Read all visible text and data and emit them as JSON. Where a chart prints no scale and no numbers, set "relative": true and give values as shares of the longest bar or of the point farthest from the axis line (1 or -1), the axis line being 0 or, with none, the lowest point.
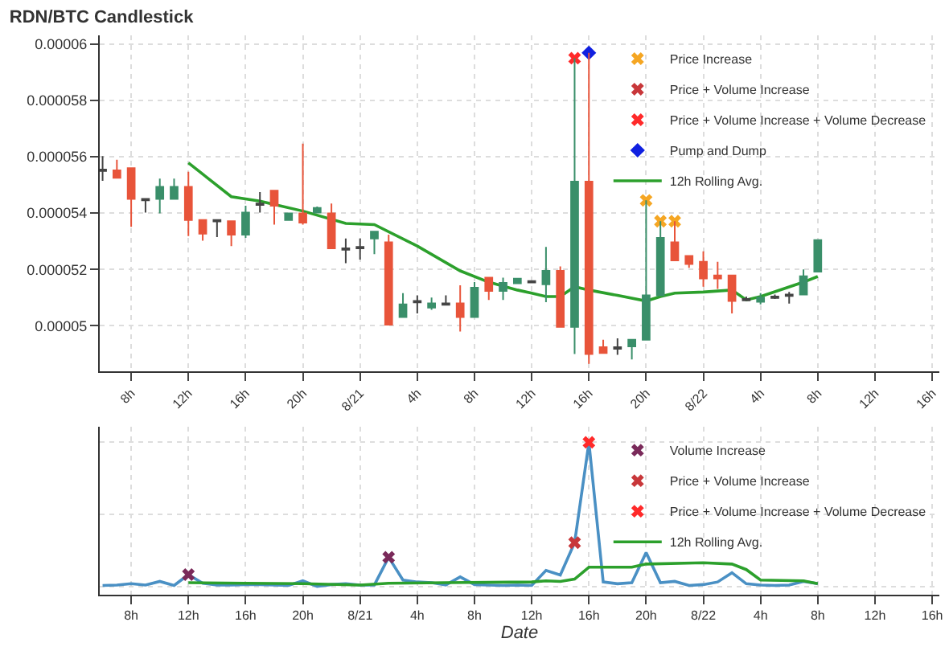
{
  "chart_data": [
    {
      "type": "candlestick",
      "title": "RDN/BTC Candlestick",
      "x": [
        "--08-20T06:00",
        "--08-20T07:00",
        "--08-20T08:00",
        "--08-20T09:00",
        "--08-20T10:00",
        "--08-20T11:00",
        "--08-20T12:00",
        "--08-20T13:00",
        "--08-20T14:00",
        "--08-20T15:00",
        "--08-20T16:00",
        "--08-20T17:00",
        "--08-20T18:00",
        "--08-20T19:00",
        "--08-20T20:00",
        "--08-20T21:00",
        "--08-20T22:00",
        "--08-20T23:00",
        "--08-21T00:00",
        "--08-21T01:00",
        "--08-21T02:00",
        "--08-21T03:00",
        "--08-21T04:00",
        "--08-21T05:00",
        "--08-21T06:00",
        "--08-21T07:00",
        "--08-21T08:00",
        "--08-21T09:00",
        "--08-21T10:00",
        "--08-21T11:00",
        "--08-21T12:00",
        "--08-21T13:00",
        "--08-21T14:00",
        "--08-21T15:00",
        "--08-21T16:00",
        "--08-21T17:00",
        "--08-21T18:00",
        "--08-21T19:00",
        "--08-21T20:00",
        "--08-21T21:00",
        "--08-21T22:00",
        "--08-21T23:00",
        "--08-22T00:00",
        "--08-22T01:00",
        "--08-22T02:00",
        "--08-22T03:00",
        "--08-22T04:00",
        "--08-22T05:00",
        "--08-22T06:00",
        "--08-22T07:00",
        "--08-22T08:00"
      ],
      "ohlc": [
        [
          5.554e-05,
          5.602e-05,
          5.514e-05,
          5.549e-05
        ],
        [
          5.551e-05,
          5.589e-05,
          5.525e-05,
          5.525e-05
        ],
        [
          5.559e-05,
          5.559e-05,
          5.351e-05,
          5.45e-05
        ],
        [
          5.45e-05,
          5.45e-05,
          5.402e-05,
          5.445e-05
        ],
        [
          5.45e-05,
          5.522e-05,
          5.399e-05,
          5.493e-05
        ],
        [
          5.45e-05,
          5.522e-05,
          5.45e-05,
          5.493e-05
        ],
        [
          5.493e-05,
          5.546e-05,
          5.318e-05,
          5.375e-05
        ],
        [
          5.375e-05,
          5.375e-05,
          5.302e-05,
          5.327e-05
        ],
        [
          5.375e-05,
          5.375e-05,
          5.315e-05,
          5.37e-05
        ],
        [
          5.371e-05,
          5.371e-05,
          5.283e-05,
          5.323e-05
        ],
        [
          5.323e-05,
          5.426e-05,
          5.312e-05,
          5.402e-05
        ],
        [
          5.434e-05,
          5.474e-05,
          5.402e-05,
          5.429e-05
        ],
        [
          5.479e-05,
          5.479e-05,
          5.359e-05,
          5.426e-05
        ],
        [
          5.375e-05,
          5.399e-05,
          5.375e-05,
          5.399e-05
        ],
        [
          5.399e-05,
          5.646e-05,
          5.359e-05,
          5.366e-05
        ],
        [
          5.402e-05,
          5.423e-05,
          5.402e-05,
          5.418e-05
        ],
        [
          5.399e-05,
          5.434e-05,
          5.275e-05,
          5.275e-05
        ],
        [
          5.275e-05,
          5.31e-05,
          5.222e-05,
          5.27e-05
        ],
        [
          5.28e-05,
          5.31e-05,
          5.235e-05,
          5.275e-05
        ],
        [
          5.31e-05,
          5.334e-05,
          5.254e-05,
          5.334e-05
        ],
        [
          5.296e-05,
          5.323e-05,
          5.004e-05,
          5.004e-05
        ],
        [
          5.031e-05,
          5.116e-05,
          5.031e-05,
          5.076e-05
        ],
        [
          5.088e-05,
          5.108e-05,
          5.044e-05,
          5.083e-05
        ],
        [
          5.065e-05,
          5.1e-05,
          5.057e-05,
          5.08e-05
        ],
        [
          5.08e-05,
          5.108e-05,
          5.073e-05,
          5.075e-05
        ],
        [
          5.08e-05,
          5.144e-05,
          4.98e-05,
          5.031e-05
        ],
        [
          5.031e-05,
          5.155e-05,
          5.031e-05,
          5.135e-05
        ],
        [
          5.171e-05,
          5.171e-05,
          5.092e-05,
          5.124e-05
        ],
        [
          5.124e-05,
          5.171e-05,
          5.092e-05,
          5.152e-05
        ],
        [
          5.151e-05,
          5.167e-05,
          5.151e-05,
          5.167e-05
        ],
        [
          5.159e-05,
          5.159e-05,
          5.154e-05,
          5.154e-05
        ],
        [
          5.147e-05,
          5.28e-05,
          5.084e-05,
          5.195e-05
        ],
        [
          5.195e-05,
          5.211e-05,
          4.996e-05,
          4.996e-05
        ],
        [
          4.996e-05,
          5.949e-05,
          4.9e-05,
          5.511e-05
        ],
        [
          5.511e-05,
          5.968e-05,
          4.865e-05,
          4.9e-05
        ],
        [
          4.924e-05,
          4.951e-05,
          4.904e-05,
          4.904e-05
        ],
        [
          4.924e-05,
          4.956e-05,
          4.897e-05,
          4.919e-05
        ],
        [
          4.927e-05,
          4.951e-05,
          4.881e-05,
          4.951e-05
        ],
        [
          4.951e-05,
          5.445e-05,
          4.951e-05,
          5.108e-05
        ],
        [
          5.108e-05,
          5.371e-05,
          5.108e-05,
          5.312e-05
        ],
        [
          5.296e-05,
          5.371e-05,
          5.232e-05,
          5.232e-05
        ],
        [
          5.248e-05,
          5.248e-05,
          5.206e-05,
          5.219e-05
        ],
        [
          5.227e-05,
          5.264e-05,
          5.139e-05,
          5.168e-05
        ],
        [
          5.179e-05,
          5.227e-05,
          5.131e-05,
          5.168e-05
        ],
        [
          5.179e-05,
          5.179e-05,
          5.044e-05,
          5.088e-05
        ],
        [
          5.095e-05,
          5.104e-05,
          5.088e-05,
          5.09e-05
        ],
        [
          5.085e-05,
          5.116e-05,
          5.076e-05,
          5.1e-05
        ],
        [
          5.104e-05,
          5.111e-05,
          5.095e-05,
          5.099e-05
        ],
        [
          5.111e-05,
          5.12e-05,
          5.079e-05,
          5.106e-05
        ],
        [
          5.111e-05,
          5.2e-05,
          5.111e-05,
          5.176e-05
        ],
        [
          5.192e-05,
          5.304e-05,
          5.192e-05,
          5.304e-05
        ]
      ],
      "colors": [
        "#444444",
        "#e8543a",
        "#e8543a",
        "#444444",
        "#3a8f6a",
        "#3a8f6a",
        "#e8543a",
        "#e8543a",
        "#444444",
        "#e8543a",
        "#3a8f6a",
        "#444444",
        "#e8543a",
        "#3a8f6a",
        "#e8543a",
        "#3a8f6a",
        "#e8543a",
        "#444444",
        "#444444",
        "#3a8f6a",
        "#e8543a",
        "#3a8f6a",
        "#444444",
        "#3a8f6a",
        "#444444",
        "#e8543a",
        "#3a8f6a",
        "#e8543a",
        "#3a8f6a",
        "#3a8f6a",
        "#444444",
        "#3a8f6a",
        "#e8543a",
        "#3a8f6a",
        "#e8543a",
        "#e8543a",
        "#444444",
        "#3a8f6a",
        "#3a8f6a",
        "#3a8f6a",
        "#e8543a",
        "#e8543a",
        "#e8543a",
        "#e8543a",
        "#e8543a",
        "#444444",
        "#3a8f6a",
        "#444444",
        "#444444",
        "#3a8f6a",
        "#3a8f6a"
      ],
      "series": [
        {
          "name": "Price Increase",
          "type": "scatter",
          "marker": "cross",
          "color": "#f5a623",
          "x": [
            "--08-21T20:00",
            "--08-21T21:00",
            "--08-21T22:00"
          ],
          "values": [
            5.445e-05,
            5.371e-05,
            5.371e-05
          ]
        },
        {
          "name": "Price + Volume Increase",
          "type": "scatter",
          "marker": "cross",
          "color": "#c8373a",
          "values": [
            null,
            null,
            null,
            null,
            null,
            null,
            null,
            null,
            null,
            null,
            null,
            null,
            null,
            null,
            null,
            null,
            null,
            null,
            null,
            null,
            null,
            null,
            null,
            null,
            null,
            null,
            null,
            null,
            null,
            null,
            null,
            null,
            null,
            null,
            null,
            null,
            null,
            null,
            null,
            null,
            null,
            null,
            null,
            null,
            null,
            null,
            null,
            null,
            null,
            null,
            null
          ]
        },
        {
          "name": "Price + Volume Increase + Volume Decrease",
          "type": "scatter",
          "marker": "cross",
          "color": "#ff2a2a",
          "x": [
            "--08-21T15:00"
          ],
          "values": [
            5.949e-05
          ]
        },
        {
          "name": "Pump and Dump",
          "type": "scatter",
          "marker": "diamond",
          "color": "#1020e0",
          "x": [
            "--08-21T16:00"
          ],
          "values": [
            5.968e-05
          ]
        },
        {
          "name": "12h Rolling Avg.",
          "type": "line",
          "marker": "none",
          "color": "#2ca02c",
          "x": [
            "--08-20T12:00",
            "--08-20T15:00",
            "--08-20T17:00",
            "--08-20T20:00",
            "--08-20T23:00",
            "--08-21T01:00",
            "--08-21T04:00",
            "--08-21T07:00",
            "--08-21T09:00",
            "--08-21T11:00",
            "--08-21T12:00",
            "--08-21T13:00",
            "--08-21T14:00",
            "--08-21T15:00",
            "--08-21T16:00",
            "--08-21T18:00",
            "--08-21T20:00",
            "--08-21T21:00",
            "--08-21T22:00",
            "--08-22T00:00",
            "--08-22T02:00",
            "--08-22T03:00",
            "--08-22T04:00",
            "--08-22T07:00",
            "--08-22T08:00"
          ],
          "values": [
            5.578e-05,
            5.458e-05,
            5.442e-05,
            5.407e-05,
            5.363e-05,
            5.359e-05,
            5.283e-05,
            5.195e-05,
            5.155e-05,
            5.127e-05,
            5.116e-05,
            5.104e-05,
            5.104e-05,
            5.139e-05,
            5.127e-05,
            5.108e-05,
            5.088e-05,
            5.104e-05,
            5.116e-05,
            5.12e-05,
            5.127e-05,
            5.092e-05,
            5.104e-05,
            5.155e-05,
            5.175e-05
          ]
        }
      ],
      "xlim": [
        "--08-20T05:48",
        "--08-22T16:30"
      ],
      "xticks": [
        {
          "value": "--08-20T08:00",
          "label": "8h"
        },
        {
          "value": "--08-20T12:00",
          "label": "12h"
        },
        {
          "value": "--08-20T16:00",
          "label": "16h"
        },
        {
          "value": "--08-20T20:00",
          "label": "20h"
        },
        {
          "value": "--08-21T00:00",
          "label": "8/21"
        },
        {
          "value": "--08-21T04:00",
          "label": "4h"
        },
        {
          "value": "--08-21T08:00",
          "label": "8h"
        },
        {
          "value": "--08-21T12:00",
          "label": "12h"
        },
        {
          "value": "--08-21T16:00",
          "label": "16h"
        },
        {
          "value": "--08-21T20:00",
          "label": "20h"
        },
        {
          "value": "--08-22T00:00",
          "label": "8/22"
        },
        {
          "value": "--08-22T04:00",
          "label": "4h"
        },
        {
          "value": "--08-22T08:00",
          "label": "8h"
        },
        {
          "value": "--08-22T12:00",
          "label": "12h"
        },
        {
          "value": "--08-22T16:00",
          "label": "16h"
        }
      ],
      "ylim": [
        4.84e-05,
        6.03e-05
      ],
      "yticks": [
        {
          "value": 5e-05,
          "label": "0.00005"
        },
        {
          "value": 5.2e-05,
          "label": "0.000052"
        },
        {
          "value": 5.4e-05,
          "label": "0.000054"
        },
        {
          "value": 5.6e-05,
          "label": "0.000056"
        },
        {
          "value": 5.8e-05,
          "label": "0.000058"
        },
        {
          "value": 6e-05,
          "label": "0.00006"
        }
      ],
      "grid": true,
      "legend": "top right"
    },
    {
      "type": "line",
      "relative": true,
      "xlabel": "Date",
      "x": [
        "--08-20T06:00",
        "--08-20T07:00",
        "--08-20T08:00",
        "--08-20T09:00",
        "--08-20T10:00",
        "--08-20T11:00",
        "--08-20T12:00",
        "--08-20T13:00",
        "--08-20T14:00",
        "--08-20T15:00",
        "--08-20T16:00",
        "--08-20T17:00",
        "--08-20T18:00",
        "--08-20T19:00",
        "--08-20T20:00",
        "--08-20T21:00",
        "--08-20T22:00",
        "--08-20T23:00",
        "--08-21T00:00",
        "--08-21T01:00",
        "--08-21T02:00",
        "--08-21T03:00",
        "--08-21T04:00",
        "--08-21T05:00",
        "--08-21T06:00",
        "--08-21T07:00",
        "--08-21T08:00",
        "--08-21T09:00",
        "--08-21T10:00",
        "--08-21T11:00",
        "--08-21T12:00",
        "--08-21T13:00",
        "--08-21T14:00",
        "--08-21T15:00",
        "--08-21T16:00",
        "--08-21T17:00",
        "--08-21T18:00",
        "--08-21T19:00",
        "--08-21T20:00",
        "--08-21T21:00",
        "--08-21T22:00",
        "--08-21T23:00",
        "--08-22T00:00",
        "--08-22T01:00",
        "--08-22T02:00",
        "--08-22T03:00",
        "--08-22T04:00",
        "--08-22T05:00",
        "--08-22T06:00",
        "--08-22T07:00",
        "--08-22T08:00"
      ],
      "series": [
        {
          "color": "#4a90c4",
          "values": [
            0.01,
            0.013,
            0.022,
            0.013,
            0.038,
            0.01,
            0.085,
            0.025,
            0.013,
            0.013,
            0.016,
            0.016,
            0.013,
            0.01,
            0.042,
            0.004,
            0.016,
            0.022,
            0.013,
            0.013,
            0.205,
            0.047,
            0.034,
            0.029,
            0.013,
            0.069,
            0.016,
            0.013,
            0.01,
            0.013,
            0.01,
            0.114,
            0.082,
            0.306,
            1,
            0.034,
            0.022,
            0.029,
            0.237,
            0.029,
            0.038,
            0.01,
            0.016,
            0.034,
            0.098,
            0.022,
            0.013,
            0.01,
            0.013,
            0.038,
            0.022
          ]
        },
        {
          "name": "Volume Increase",
          "type": "scatter",
          "marker": "cross",
          "color": "#7a2a5a",
          "x": [
            "--08-20T12:00",
            "--08-21T02:00"
          ],
          "values": [
            0.085,
            0.205
          ]
        },
        {
          "name": "Price + Volume Increase",
          "type": "scatter",
          "marker": "cross",
          "color": "#c8373a",
          "x": [
            "--08-21T15:00"
          ],
          "values": [
            0.306
          ]
        },
        {
          "name": "Price + Volume Increase + Volume Decrease",
          "type": "scatter",
          "marker": "cross",
          "color": "#ff2a2a",
          "x": [
            "--08-21T16:00"
          ],
          "values": [
            1
          ]
        },
        {
          "name": "12h Rolling Avg.",
          "type": "line",
          "marker": "none",
          "color": "#2ca02c",
          "x": [
            "--08-20T12:00",
            "--08-20T16:00",
            "--08-20T20:00",
            "--08-21T00:00",
            "--08-21T02:00",
            "--08-21T06:00",
            "--08-21T12:00",
            "--08-21T13:00",
            "--08-21T14:00",
            "--08-21T15:00",
            "--08-21T16:00",
            "--08-21T19:00",
            "--08-21T20:00",
            "--08-22T00:00",
            "--08-22T02:00",
            "--08-22T03:00",
            "--08-22T04:00",
            "--08-22T07:00",
            "--08-22T08:00"
          ],
          "values": [
            0.029,
            0.025,
            0.022,
            0.013,
            0.025,
            0.029,
            0.034,
            0.042,
            0.038,
            0.054,
            0.136,
            0.136,
            0.158,
            0.167,
            0.158,
            0.12,
            0.047,
            0.042,
            0.022
          ]
        }
      ],
      "xlim": [
        "--08-20T05:48",
        "--08-22T16:30"
      ],
      "xticks": [
        {
          "value": "--08-20T08:00",
          "label": "8h"
        },
        {
          "value": "--08-20T12:00",
          "label": "12h"
        },
        {
          "value": "--08-20T16:00",
          "label": "16h"
        },
        {
          "value": "--08-20T20:00",
          "label": "20h"
        },
        {
          "value": "--08-21T00:00",
          "label": "8/21"
        },
        {
          "value": "--08-21T04:00",
          "label": "4h"
        },
        {
          "value": "--08-21T08:00",
          "label": "8h"
        },
        {
          "value": "--08-21T12:00",
          "label": "12h"
        },
        {
          "value": "--08-21T16:00",
          "label": "16h"
        },
        {
          "value": "--08-21T20:00",
          "label": "20h"
        },
        {
          "value": "--08-22T00:00",
          "label": "8/22"
        },
        {
          "value": "--08-22T04:00",
          "label": "4h"
        },
        {
          "value": "--08-22T08:00",
          "label": "8h"
        },
        {
          "value": "--08-22T12:00",
          "label": "12h"
        },
        {
          "value": "--08-22T16:00",
          "label": "16h"
        }
      ],
      "grid": true,
      "legend": "top right"
    }
  ]
}
